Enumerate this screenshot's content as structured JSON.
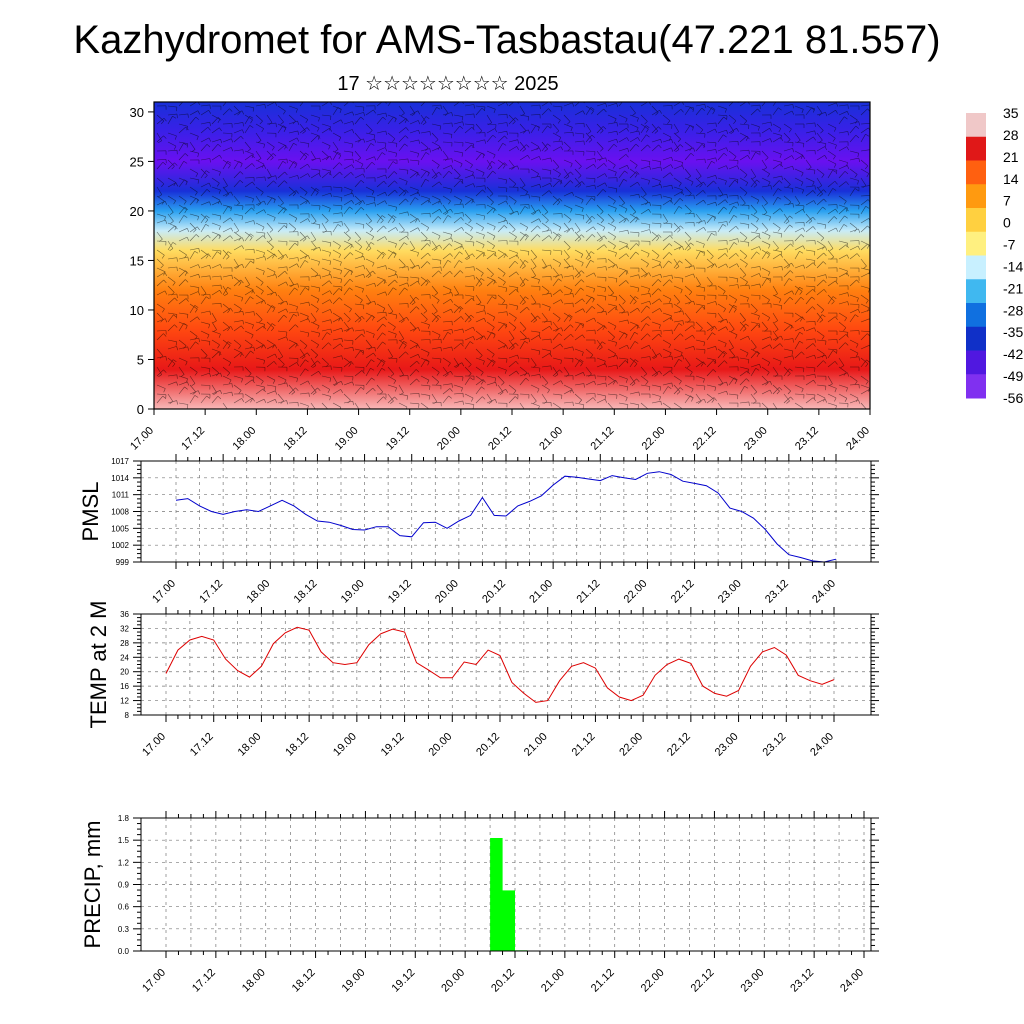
{
  "title": "Kazhydromet for AMS-Tasbastau(47.221 81.557)",
  "subtitle": "17 ☆☆☆☆☆☆☆☆ 2025",
  "colorbar": {
    "labels": [
      "35",
      "28",
      "21",
      "14",
      "7",
      "0",
      "-7",
      "-14",
      "-21",
      "-28",
      "-35",
      "-42",
      "-49",
      "-56"
    ],
    "colors": [
      "#f0c8c8",
      "#e01818",
      "#ff6010",
      "#ff9a10",
      "#ffd040",
      "#fff080",
      "#c8f0ff",
      "#40b8f0",
      "#1070e0",
      "#1030c8",
      "#5018e0",
      "#8030f0"
    ]
  },
  "chart_data": [
    {
      "type": "heatmap",
      "name": "temperature-wind-cross-section",
      "x_ticks": [
        "17.00",
        "17.12",
        "18.00",
        "18.12",
        "19.00",
        "19.12",
        "20.00",
        "20.12",
        "21.00",
        "21.12",
        "22.00",
        "22.12",
        "23.00",
        "23.12",
        "24.00"
      ],
      "ylim": [
        0,
        31
      ],
      "y_ticks": [
        0,
        5,
        10,
        15,
        20,
        25,
        30
      ],
      "value_range": [
        -56,
        35
      ],
      "temperature_profile_by_height": [
        {
          "height": 0,
          "value": 33
        },
        {
          "height": 4,
          "value": 28
        },
        {
          "height": 8,
          "value": 20
        },
        {
          "height": 12,
          "value": 8
        },
        {
          "height": 16,
          "value": -3
        },
        {
          "height": 18,
          "value": -18
        },
        {
          "height": 20,
          "value": -30
        },
        {
          "height": 22,
          "value": -42
        },
        {
          "height": 25,
          "value": -56
        },
        {
          "height": 28,
          "value": -50
        },
        {
          "height": 31,
          "value": -45
        }
      ]
    },
    {
      "type": "line",
      "name": "pmsl",
      "ylabel": "PMSL",
      "ylim": [
        999,
        1017
      ],
      "y_ticks": [
        999,
        1002,
        1005,
        1008,
        1011,
        1014,
        1017
      ],
      "x_ticks": [
        "17.00",
        "17.12",
        "18.00",
        "18.12",
        "19.00",
        "19.12",
        "20.00",
        "20.12",
        "21.00",
        "21.12",
        "22.00",
        "22.12",
        "23.00",
        "23.12",
        "24.00"
      ],
      "x_hours": [
        0,
        3,
        6,
        9,
        12,
        15,
        18,
        21,
        24,
        27,
        30,
        33,
        36,
        39,
        42,
        45,
        48,
        51,
        54,
        57,
        60,
        63,
        66,
        69,
        72,
        75,
        78,
        81,
        84,
        87,
        90,
        93,
        96,
        99,
        102,
        105,
        108,
        111,
        114,
        117,
        120,
        123,
        126,
        129,
        132,
        135,
        138,
        141,
        144,
        147,
        150,
        153,
        156,
        159,
        162,
        165,
        168
      ],
      "values": [
        1010,
        1010.3,
        1009,
        1008,
        1007.5,
        1008,
        1008.3,
        1008,
        1009,
        1010,
        1009,
        1007.5,
        1006.3,
        1006.1,
        1005.5,
        1004.8,
        1004.7,
        1005.3,
        1005.3,
        1003.7,
        1003.5,
        1006,
        1006.1,
        1005,
        1006.3,
        1007.3,
        1010.5,
        1007.3,
        1007.2,
        1009,
        1009.8,
        1010.8,
        1012.7,
        1014.3,
        1014.1,
        1013.8,
        1013.5,
        1014.4,
        1014,
        1013.7,
        1014.8,
        1015.1,
        1014.6,
        1013.4,
        1013,
        1012.6,
        1011.3,
        1008.6,
        1008,
        1006.8,
        1004.8,
        1002.2,
        1000.3,
        999.8,
        999.2,
        999,
        999.5
      ]
    },
    {
      "type": "line",
      "name": "temp-2m",
      "ylabel": "TEMP at 2 M",
      "ylim": [
        8,
        36
      ],
      "y_ticks": [
        8,
        12,
        16,
        20,
        24,
        28,
        32,
        36
      ],
      "x_ticks": [
        "17.00",
        "17.12",
        "18.00",
        "18.12",
        "19.00",
        "19.12",
        "20.00",
        "20.12",
        "21.00",
        "21.12",
        "22.00",
        "22.12",
        "23.00",
        "23.12",
        "24.00"
      ],
      "x_hours": [
        0,
        3,
        6,
        9,
        12,
        15,
        18,
        21,
        24,
        27,
        30,
        33,
        36,
        39,
        42,
        45,
        48,
        51,
        54,
        57,
        60,
        63,
        66,
        69,
        72,
        75,
        78,
        81,
        84,
        87,
        90,
        93,
        96,
        99,
        102,
        105,
        108,
        111,
        114,
        117,
        120,
        123,
        126,
        129,
        132,
        135,
        138,
        141,
        144,
        147,
        150,
        153,
        156,
        159,
        162,
        165,
        168
      ],
      "values": [
        19.5,
        26,
        28.8,
        29.8,
        28.8,
        23.5,
        20.3,
        18.5,
        21.5,
        27.8,
        30.8,
        32.3,
        31.5,
        25.5,
        22.5,
        22,
        22.5,
        27.5,
        30.5,
        31.8,
        31,
        22.5,
        20.5,
        18.3,
        18.3,
        22.7,
        22,
        26,
        24.5,
        17,
        14,
        11.5,
        12,
        17.5,
        21.5,
        22.5,
        21,
        15.5,
        13,
        12,
        13.5,
        19,
        22,
        23.5,
        22.3,
        16,
        14,
        13.2,
        14.8,
        21.5,
        25.5,
        26.7,
        24.6,
        19,
        17.5,
        16.5,
        17.8
      ]
    },
    {
      "type": "bar",
      "name": "precip",
      "ylabel": "PRECIP, mm",
      "ylim": [
        0,
        1.8
      ],
      "y_ticks": [
        "0.0",
        "0.3",
        "0.6",
        "0.9",
        "1.2",
        "1.5",
        "1.8"
      ],
      "x_ticks": [
        "17.00",
        "17.12",
        "18.00",
        "18.12",
        "19.00",
        "19.12",
        "20.00",
        "20.12",
        "21.00",
        "21.12",
        "22.00",
        "22.12",
        "23.00",
        "23.12",
        "24.00"
      ],
      "bars": [
        {
          "x_hours": 78,
          "value": 1.53
        },
        {
          "x_hours": 81,
          "value": 0.82
        },
        {
          "x_hours": 84,
          "value": 0.01
        }
      ],
      "color": "#00ff00"
    }
  ]
}
